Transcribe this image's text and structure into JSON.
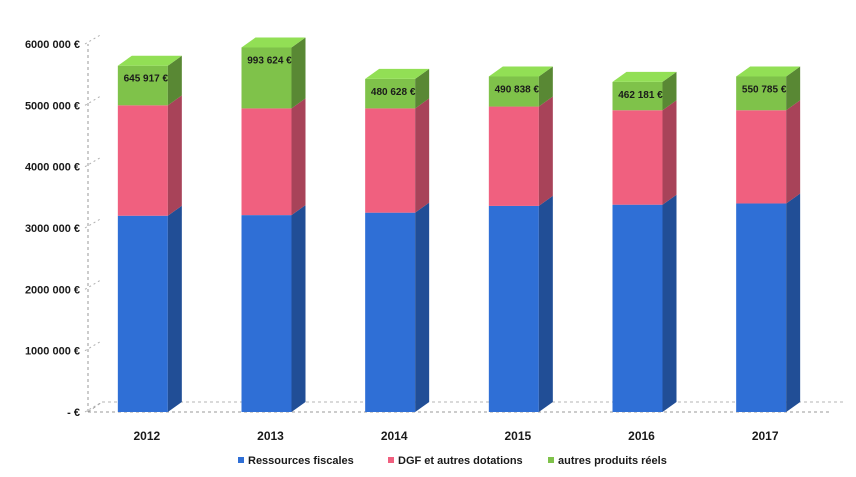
{
  "chart_data": {
    "type": "bar",
    "stacked": true,
    "three_d": true,
    "title": "",
    "xlabel": "",
    "ylabel": "",
    "ylim": [
      0,
      6000000
    ],
    "y_ticks": [
      0,
      1000000,
      2000000,
      3000000,
      4000000,
      5000000,
      6000000
    ],
    "y_tick_labels": [
      "- €",
      "1000 000 €",
      "2000 000 €",
      "3000 000 €",
      "4000 000 €",
      "5000 000 €",
      "6000 000 €"
    ],
    "grid": false,
    "legend_position": "bottom",
    "categories": [
      "2012",
      "2013",
      "2014",
      "2015",
      "2016",
      "2017"
    ],
    "series": [
      {
        "name": "Ressources fiscales",
        "color": "#2f6fd6",
        "values": [
          3200000,
          3210000,
          3250000,
          3360000,
          3380000,
          3400000
        ],
        "labels": [
          "",
          "",
          "",
          "",
          "",
          ""
        ]
      },
      {
        "name": "DGF et autres dotations",
        "color": "#f0607f",
        "values": [
          1800000,
          1740000,
          1700000,
          1620000,
          1540000,
          1520000
        ],
        "labels": [
          "",
          "",
          "",
          "",
          "",
          ""
        ]
      },
      {
        "name": "autres produits réels",
        "color": "#7fc24a",
        "values": [
          645917,
          993624,
          480628,
          490838,
          462181,
          550785
        ],
        "labels": [
          "645 917 €",
          "993 624 €",
          "480 628 €",
          "490 838 €",
          "462 181 €",
          "550 785 €"
        ]
      }
    ]
  }
}
